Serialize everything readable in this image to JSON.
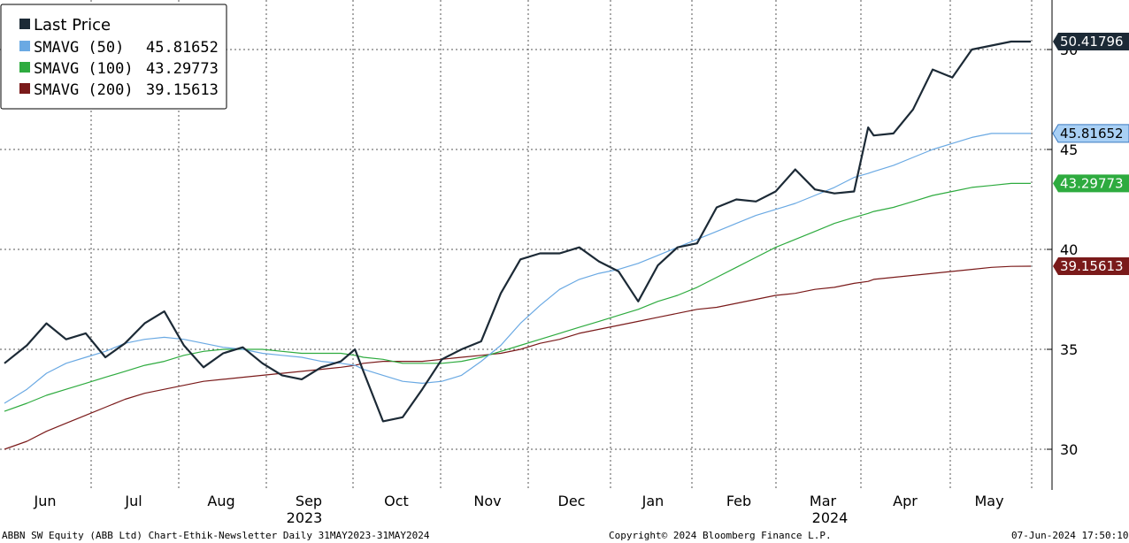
{
  "chart_data": {
    "type": "line",
    "ylim": [
      28,
      52
    ],
    "y_ticks": [
      30,
      35,
      40,
      45,
      50
    ],
    "grid": true,
    "legend_position": "top-left",
    "month_labels": [
      "Jun",
      "Jul",
      "Aug",
      "Sep",
      "Oct",
      "Nov",
      "Dec",
      "Jan",
      "Feb",
      "Mar",
      "Apr",
      "May"
    ],
    "year_labels": [
      "2023",
      "2024"
    ],
    "x": [
      "2023-05-31",
      "2023-06-08",
      "2023-06-15",
      "2023-06-22",
      "2023-06-29",
      "2023-07-06",
      "2023-07-13",
      "2023-07-20",
      "2023-07-27",
      "2023-08-03",
      "2023-08-10",
      "2023-08-17",
      "2023-08-24",
      "2023-08-31",
      "2023-09-07",
      "2023-09-14",
      "2023-09-21",
      "2023-09-28",
      "2023-10-03",
      "2023-10-06",
      "2023-10-13",
      "2023-10-20",
      "2023-10-27",
      "2023-11-03",
      "2023-11-10",
      "2023-11-17",
      "2023-11-24",
      "2023-12-01",
      "2023-12-08",
      "2023-12-15",
      "2023-12-22",
      "2023-12-29",
      "2024-01-05",
      "2024-01-12",
      "2024-01-19",
      "2024-01-26",
      "2024-02-02",
      "2024-02-09",
      "2024-02-16",
      "2024-02-23",
      "2024-03-01",
      "2024-03-08",
      "2024-03-15",
      "2024-03-22",
      "2024-03-29",
      "2024-04-03",
      "2024-04-05",
      "2024-04-12",
      "2024-04-19",
      "2024-04-26",
      "2024-05-03",
      "2024-05-10",
      "2024-05-17",
      "2024-05-24",
      "2024-05-31"
    ],
    "series": [
      {
        "name": "Last Price",
        "color": "#1c2a36",
        "current_label": "50.41796",
        "values": [
          34.3,
          35.2,
          36.3,
          35.5,
          35.8,
          34.6,
          35.3,
          36.3,
          36.9,
          35.2,
          34.1,
          34.8,
          35.1,
          34.3,
          33.7,
          33.5,
          34.1,
          34.4,
          35.0,
          33.9,
          31.4,
          31.6,
          33.0,
          34.5,
          35.0,
          35.4,
          37.8,
          39.5,
          39.8,
          39.8,
          40.1,
          39.4,
          38.9,
          37.4,
          39.2,
          40.1,
          40.3,
          42.1,
          42.5,
          42.4,
          42.9,
          44.0,
          43.0,
          42.8,
          42.9,
          46.1,
          45.7,
          45.8,
          47.0,
          49.0,
          48.6,
          50.0,
          50.2,
          50.4,
          50.4
        ]
      },
      {
        "name": "SMAVG (50)",
        "color": "#6aa9e3",
        "current_label": "45.81652",
        "values": [
          32.3,
          33.0,
          33.8,
          34.3,
          34.6,
          34.9,
          35.3,
          35.5,
          35.6,
          35.5,
          35.3,
          35.1,
          35.0,
          34.8,
          34.7,
          34.6,
          34.4,
          34.3,
          34.2,
          34.0,
          33.7,
          33.4,
          33.3,
          33.4,
          33.7,
          34.4,
          35.2,
          36.3,
          37.2,
          38.0,
          38.5,
          38.8,
          39.0,
          39.3,
          39.7,
          40.1,
          40.5,
          40.9,
          41.3,
          41.7,
          42.0,
          42.3,
          42.7,
          43.1,
          43.6,
          43.8,
          43.9,
          44.2,
          44.6,
          45.0,
          45.3,
          45.6,
          45.8,
          45.8,
          45.8
        ]
      },
      {
        "name": "SMAVG (100)",
        "color": "#2eab3f",
        "current_label": "43.29773",
        "values": [
          31.9,
          32.3,
          32.7,
          33.0,
          33.3,
          33.6,
          33.9,
          34.2,
          34.4,
          34.7,
          34.9,
          35.0,
          35.0,
          35.0,
          34.9,
          34.8,
          34.8,
          34.8,
          34.7,
          34.6,
          34.5,
          34.3,
          34.3,
          34.3,
          34.4,
          34.6,
          34.9,
          35.2,
          35.5,
          35.8,
          36.1,
          36.4,
          36.7,
          37.0,
          37.4,
          37.7,
          38.1,
          38.6,
          39.1,
          39.6,
          40.1,
          40.5,
          40.9,
          41.3,
          41.6,
          41.8,
          41.9,
          42.1,
          42.4,
          42.7,
          42.9,
          43.1,
          43.2,
          43.3,
          43.3
        ]
      },
      {
        "name": "SMAVG (200)",
        "color": "#7a1a1a",
        "current_label": "39.15613",
        "values": [
          30.0,
          30.4,
          30.9,
          31.3,
          31.7,
          32.1,
          32.5,
          32.8,
          33.0,
          33.2,
          33.4,
          33.5,
          33.6,
          33.7,
          33.8,
          33.9,
          34.0,
          34.1,
          34.2,
          34.3,
          34.4,
          34.4,
          34.4,
          34.5,
          34.6,
          34.7,
          34.8,
          35.0,
          35.3,
          35.5,
          35.8,
          36.0,
          36.2,
          36.4,
          36.6,
          36.8,
          37.0,
          37.1,
          37.3,
          37.5,
          37.7,
          37.8,
          38.0,
          38.1,
          38.3,
          38.4,
          38.5,
          38.6,
          38.7,
          38.8,
          38.9,
          39.0,
          39.1,
          39.15,
          39.16
        ]
      }
    ]
  },
  "legend": {
    "title": "Last Price",
    "items": [
      {
        "label": "SMAVG (50)",
        "value": "45.81652",
        "color": "#6aa9e3"
      },
      {
        "label": "SMAVG (100)",
        "value": "43.29773",
        "color": "#2eab3f"
      },
      {
        "label": "SMAVG (200)",
        "value": "39.15613",
        "color": "#7a1a1a"
      }
    ],
    "title_color": "#1c2a36"
  },
  "footer": {
    "left": "ABBN SW Equity (ABB Ltd) Chart-Ethik-Newsletter  Daily 31MAY2023-31MAY2024",
    "center": "Copyright© 2024 Bloomberg Finance L.P.",
    "right": "07-Jun-2024 17:50:10"
  }
}
